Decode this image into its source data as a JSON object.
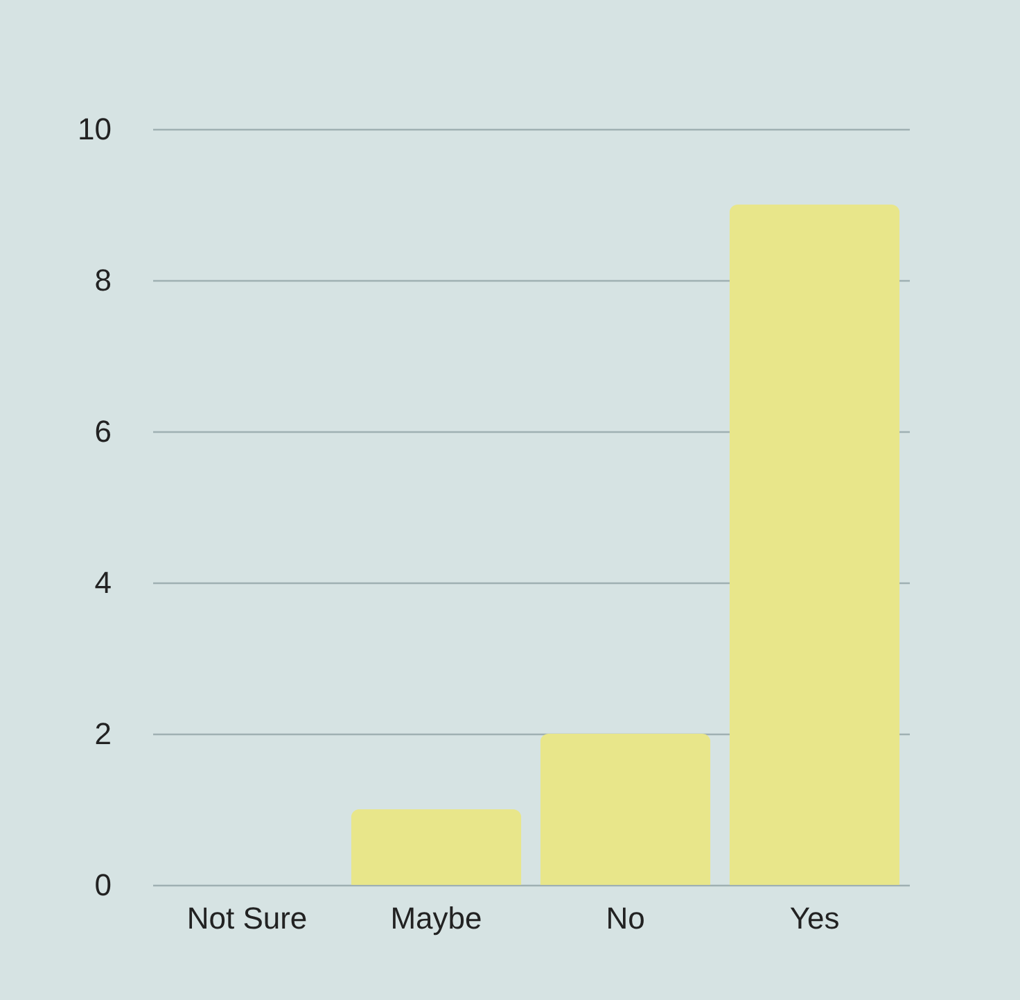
{
  "chart_data": {
    "type": "bar",
    "categories": [
      "Not Sure",
      "Maybe",
      "No",
      "Yes"
    ],
    "values": [
      0,
      1,
      2,
      9
    ],
    "color": "#e8e68a",
    "ylim": [
      0,
      10
    ],
    "yticks": [
      0,
      2,
      4,
      6,
      8,
      10
    ],
    "grid": "y"
  }
}
